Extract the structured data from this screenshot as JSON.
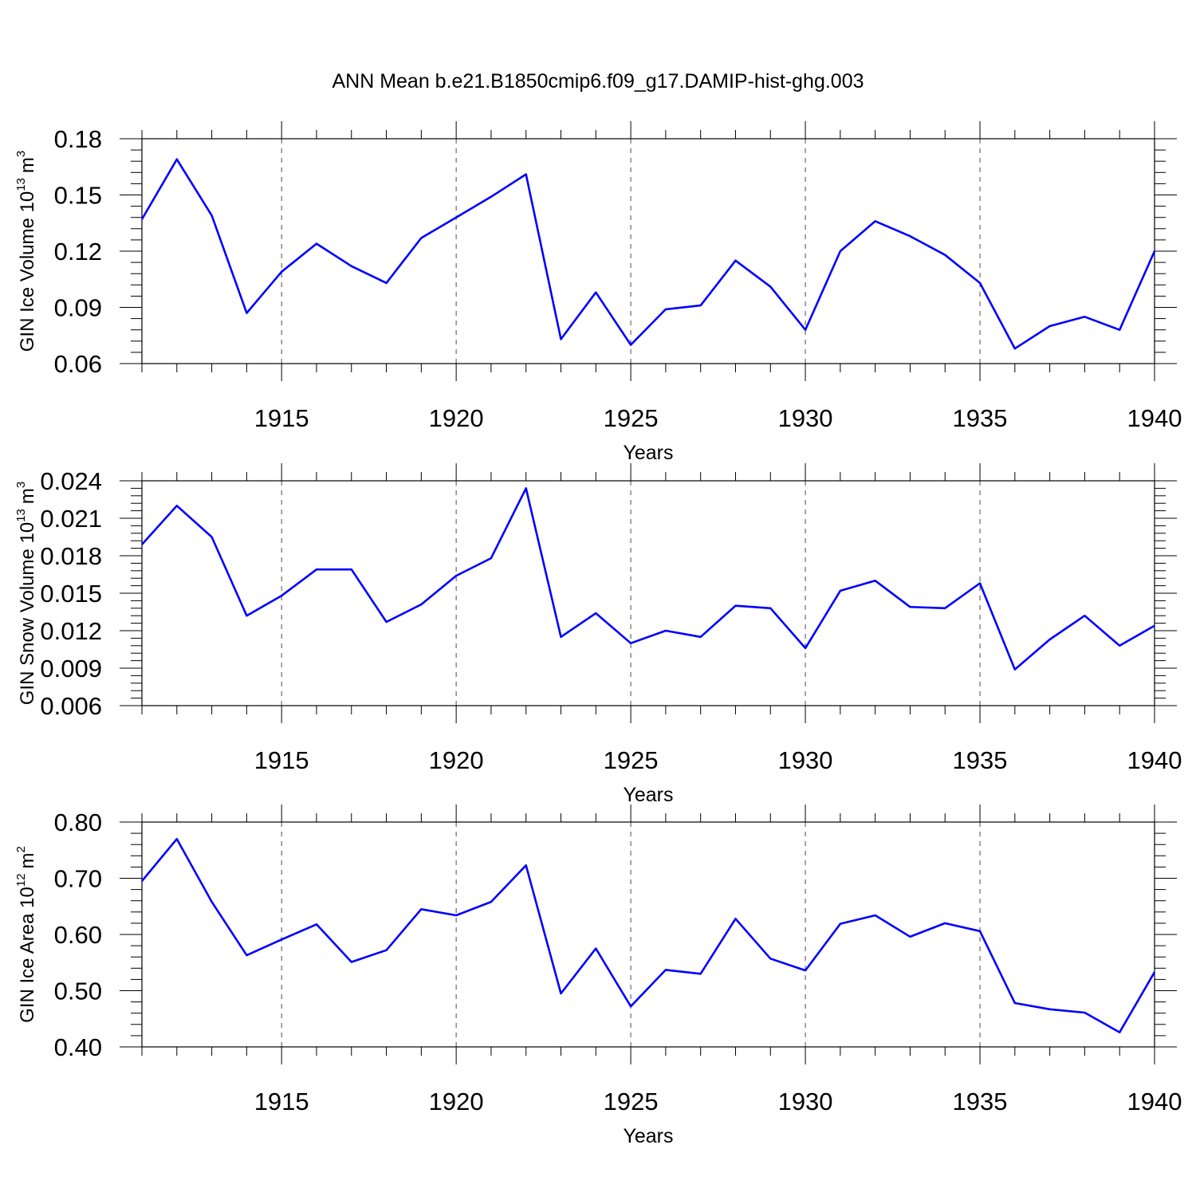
{
  "figure": {
    "title": "ANN Mean b.e21.B1850cmip6.f09_g17.DAMIP-hist-ghg.003"
  },
  "style": {
    "line_color": "#0000ff",
    "axis_color": "#000000",
    "grid_color": "#000000",
    "grid_style": "dashed vertical lines at major x ticks"
  },
  "chart_data": [
    {
      "type": "line",
      "xlabel": "Years",
      "ylabel": {
        "main": "GIN Ice Volume 10",
        "exponent": "13",
        "unit": "m",
        "unit_exponent": "3"
      },
      "xlim": [
        1911,
        1940
      ],
      "ylim": [
        0.06,
        0.18
      ],
      "xticks": [
        "1915",
        "1920",
        "1925",
        "1930",
        "1935",
        "1940"
      ],
      "yticks": [
        "0.06",
        "0.09",
        "0.12",
        "0.15",
        "0.18"
      ],
      "grid": "x-major dashed",
      "series": [
        {
          "x": [
            1911,
            1912,
            1913,
            1914,
            1915,
            1916,
            1917,
            1918,
            1919,
            1920,
            1921,
            1922,
            1923,
            1924,
            1925,
            1926,
            1927,
            1928,
            1929,
            1930,
            1931,
            1932,
            1933,
            1934,
            1935,
            1936,
            1937,
            1938,
            1939,
            1940
          ],
          "values": [
            0.137,
            0.169,
            0.139,
            0.087,
            0.109,
            0.124,
            0.112,
            0.103,
            0.127,
            0.138,
            0.149,
            0.161,
            0.073,
            0.098,
            0.07,
            0.089,
            0.091,
            0.115,
            0.101,
            0.078,
            0.12,
            0.136,
            0.128,
            0.118,
            0.103,
            0.068,
            0.08,
            0.085,
            0.078,
            0.12
          ]
        }
      ]
    },
    {
      "type": "line",
      "xlabel": "Years",
      "ylabel": {
        "main": "GIN Snow Volume 10",
        "exponent": "13",
        "unit": "m",
        "unit_exponent": "3"
      },
      "xlim": [
        1911,
        1940
      ],
      "ylim": [
        0.006,
        0.024
      ],
      "xticks": [
        "1915",
        "1920",
        "1925",
        "1930",
        "1935",
        "1940"
      ],
      "yticks": [
        "0.006",
        "0.009",
        "0.012",
        "0.015",
        "0.018",
        "0.021",
        "0.024"
      ],
      "grid": "x-major dashed",
      "series": [
        {
          "x": [
            1911,
            1912,
            1913,
            1914,
            1915,
            1916,
            1917,
            1918,
            1919,
            1920,
            1921,
            1922,
            1923,
            1924,
            1925,
            1926,
            1927,
            1928,
            1929,
            1930,
            1931,
            1932,
            1933,
            1934,
            1935,
            1936,
            1937,
            1938,
            1939,
            1940
          ],
          "values": [
            0.0189,
            0.022,
            0.0195,
            0.0132,
            0.0148,
            0.0169,
            0.0169,
            0.0127,
            0.0141,
            0.0164,
            0.0178,
            0.0234,
            0.0115,
            0.0134,
            0.011,
            0.012,
            0.0115,
            0.014,
            0.0138,
            0.0106,
            0.0152,
            0.016,
            0.0139,
            0.0138,
            0.0158,
            0.0089,
            0.0113,
            0.0132,
            0.0108,
            0.0124
          ]
        }
      ]
    },
    {
      "type": "line",
      "xlabel": "Years",
      "ylabel": {
        "main": "GIN Ice Area 10",
        "exponent": "12",
        "unit": "m",
        "unit_exponent": "2"
      },
      "xlim": [
        1911,
        1940
      ],
      "ylim": [
        0.4,
        0.8
      ],
      "xticks": [
        "1915",
        "1920",
        "1925",
        "1930",
        "1935",
        "1940"
      ],
      "yticks": [
        "0.40",
        "0.50",
        "0.60",
        "0.70",
        "0.80"
      ],
      "grid": "x-major dashed",
      "series": [
        {
          "x": [
            1911,
            1912,
            1913,
            1914,
            1915,
            1916,
            1917,
            1918,
            1919,
            1920,
            1921,
            1922,
            1923,
            1924,
            1925,
            1926,
            1927,
            1928,
            1929,
            1930,
            1931,
            1932,
            1933,
            1934,
            1935,
            1936,
            1937,
            1938,
            1939,
            1940
          ],
          "values": [
            0.695,
            0.77,
            0.658,
            0.563,
            0.591,
            0.618,
            0.551,
            0.572,
            0.645,
            0.634,
            0.658,
            0.723,
            0.495,
            0.575,
            0.472,
            0.537,
            0.53,
            0.628,
            0.557,
            0.536,
            0.619,
            0.634,
            0.596,
            0.62,
            0.606,
            0.478,
            0.467,
            0.461,
            0.426,
            0.533
          ]
        }
      ]
    }
  ]
}
